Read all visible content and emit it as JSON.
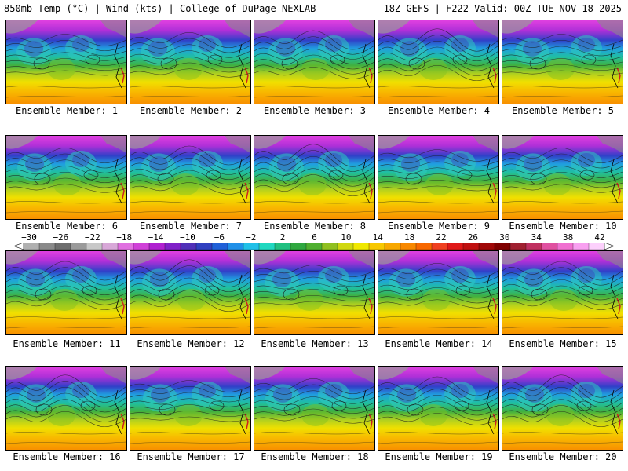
{
  "header": {
    "left": "850mb Temp (°C) | Wind (kts) | College of DuPage NEXLAB",
    "right": "18Z GEFS | F222 Valid: 00Z TUE NOV 18 2025"
  },
  "panels": [
    {
      "label": "Ensemble Member: 1"
    },
    {
      "label": "Ensemble Member: 2"
    },
    {
      "label": "Ensemble Member: 3"
    },
    {
      "label": "Ensemble Member: 4"
    },
    {
      "label": "Ensemble Member: 5"
    },
    {
      "label": "Ensemble Member: 6"
    },
    {
      "label": "Ensemble Member: 7"
    },
    {
      "label": "Ensemble Member: 8"
    },
    {
      "label": "Ensemble Member: 9"
    },
    {
      "label": "Ensemble Member: 10"
    },
    {
      "label": "Ensemble Member: 11"
    },
    {
      "label": "Ensemble Member: 12"
    },
    {
      "label": "Ensemble Member: 13"
    },
    {
      "label": "Ensemble Member: 14"
    },
    {
      "label": "Ensemble Member: 15"
    },
    {
      "label": "Ensemble Member: 16"
    },
    {
      "label": "Ensemble Member: 17"
    },
    {
      "label": "Ensemble Member: 18"
    },
    {
      "label": "Ensemble Member: 19"
    },
    {
      "label": "Ensemble Member: 20"
    }
  ],
  "colorbar": {
    "labels": [
      "−30",
      "−26",
      "−22",
      "−18",
      "−14",
      "−10",
      "−6",
      "−2",
      "2",
      "6",
      "10",
      "14",
      "18",
      "22",
      "26",
      "30",
      "34",
      "38",
      "42"
    ],
    "colors": [
      "#b0b0b0",
      "#8a8a8a",
      "#6e6e6e",
      "#9a9a9a",
      "#c8c8c8",
      "#d8a8d8",
      "#e070e0",
      "#d040d8",
      "#b020d0",
      "#8020c8",
      "#5030b8",
      "#3040c0",
      "#2060d8",
      "#2090e8",
      "#20c0e8",
      "#20d8c0",
      "#20c080",
      "#30a840",
      "#50b030",
      "#90c020",
      "#d0d810",
      "#f0e800",
      "#f8c800",
      "#f8a800",
      "#f88800",
      "#f86800",
      "#f04020",
      "#e01818",
      "#c01010",
      "#a00808",
      "#800000",
      "#a02030",
      "#c03060",
      "#e050a0",
      "#f070d0",
      "#f8a0f0",
      "#fcd0fc"
    ]
  }
}
